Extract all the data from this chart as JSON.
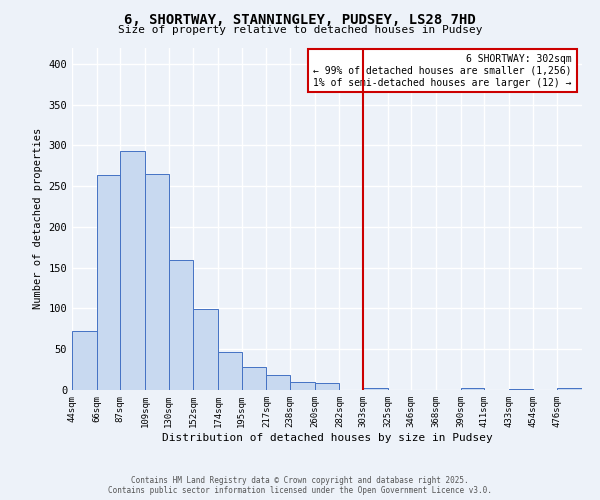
{
  "title": "6, SHORTWAY, STANNINGLEY, PUDSEY, LS28 7HD",
  "subtitle": "Size of property relative to detached houses in Pudsey",
  "xlabel": "Distribution of detached houses by size in Pudsey",
  "ylabel": "Number of detached properties",
  "bin_labels": [
    "44sqm",
    "66sqm",
    "87sqm",
    "109sqm",
    "130sqm",
    "152sqm",
    "174sqm",
    "195sqm",
    "217sqm",
    "238sqm",
    "260sqm",
    "282sqm",
    "303sqm",
    "325sqm",
    "346sqm",
    "368sqm",
    "390sqm",
    "411sqm",
    "433sqm",
    "454sqm",
    "476sqm"
  ],
  "bin_edges": [
    44,
    66,
    87,
    109,
    130,
    152,
    174,
    195,
    217,
    238,
    260,
    282,
    303,
    325,
    346,
    368,
    390,
    411,
    433,
    454,
    476
  ],
  "bar_heights": [
    72,
    264,
    293,
    265,
    160,
    99,
    47,
    28,
    19,
    10,
    9,
    0,
    2,
    0,
    0,
    0,
    3,
    0,
    1,
    0,
    2
  ],
  "bar_color": "#c8d9f0",
  "bar_edge_color": "#4472c4",
  "background_color": "#edf2f9",
  "grid_color": "#ffffff",
  "ylim": [
    0,
    420
  ],
  "yticks": [
    0,
    50,
    100,
    150,
    200,
    250,
    300,
    350,
    400
  ],
  "vline_x": 303,
  "vline_color": "#cc0000",
  "annotation_title": "6 SHORTWAY: 302sqm",
  "annotation_line1": "← 99% of detached houses are smaller (1,256)",
  "annotation_line2": "1% of semi-detached houses are larger (12) →",
  "annotation_box_edge": "#cc0000",
  "footer_line1": "Contains HM Land Registry data © Crown copyright and database right 2025.",
  "footer_line2": "Contains public sector information licensed under the Open Government Licence v3.0."
}
